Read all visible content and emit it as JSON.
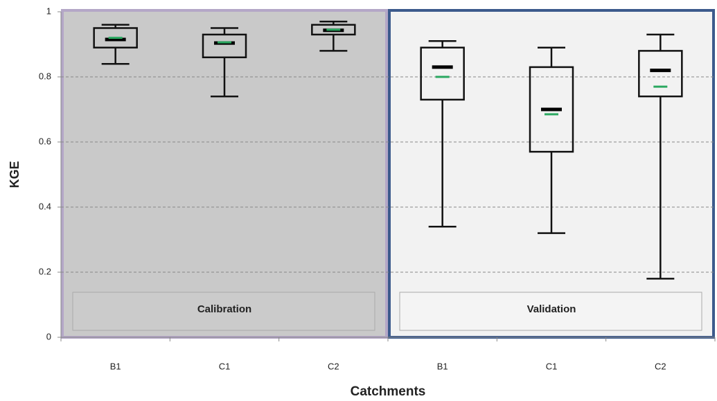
{
  "chart_data": {
    "type": "box",
    "ylabel": "KGE",
    "xlabel": "Catchments",
    "ylim": [
      0,
      1
    ],
    "yticks": [
      0,
      0.2,
      0.4,
      0.6,
      0.8,
      1
    ],
    "grid": true,
    "median_color": "#000000",
    "mean_color": "#2aa860",
    "panels": [
      {
        "label": "Calibration",
        "background": "#c9c9c9",
        "border": "#b4a7c7",
        "categories": [
          "B1",
          "C1",
          "C2"
        ],
        "min": [
          0.84,
          0.74,
          0.88
        ],
        "q1": [
          0.89,
          0.86,
          0.93
        ],
        "median": [
          0.915,
          0.904,
          0.943
        ],
        "q3": [
          0.95,
          0.93,
          0.96
        ],
        "max": [
          0.96,
          0.95,
          0.97
        ],
        "mean": [
          0.92,
          0.906,
          0.945
        ]
      },
      {
        "label": "Validation",
        "background": "#f2f2f2",
        "border": "#3c5a8c",
        "categories": [
          "B1",
          "C1",
          "C2"
        ],
        "min": [
          0.34,
          0.32,
          0.18
        ],
        "q1": [
          0.73,
          0.57,
          0.74
        ],
        "median": [
          0.83,
          0.7,
          0.82
        ],
        "q3": [
          0.89,
          0.83,
          0.88
        ],
        "max": [
          0.91,
          0.89,
          0.93
        ],
        "mean": [
          0.8,
          0.685,
          0.77
        ]
      }
    ]
  }
}
